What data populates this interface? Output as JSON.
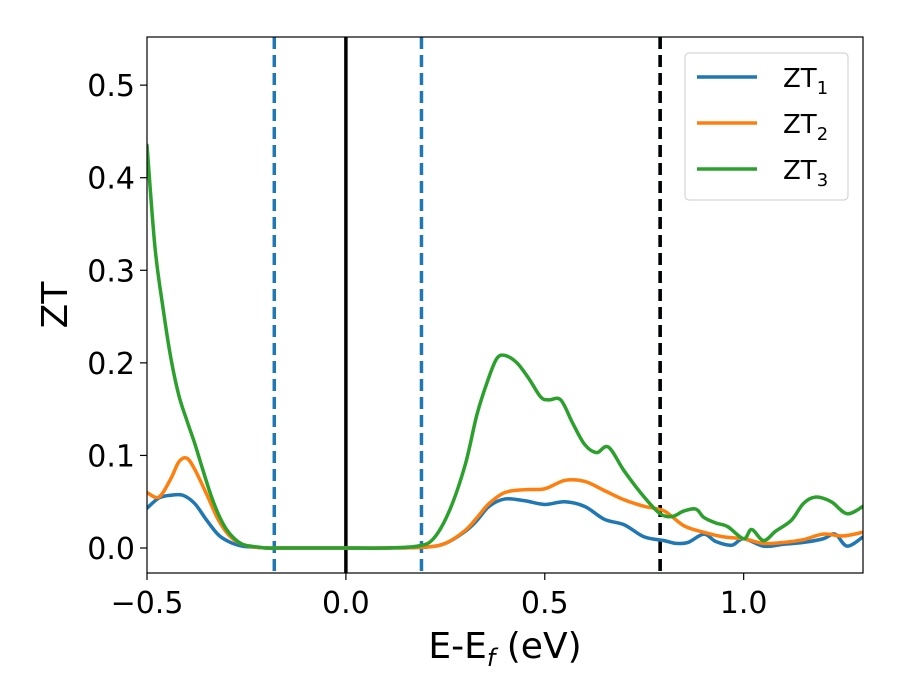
{
  "chart_data": {
    "type": "line",
    "xlabel": "E-E",
    "xlabel_subscript": "f",
    "xlabel_suffix": " (eV)",
    "ylabel": "ZT",
    "xlim": [
      -0.5,
      1.3
    ],
    "ylim": [
      -0.027,
      0.552
    ],
    "x_ticks": [
      -0.5,
      0.0,
      0.5,
      1.0
    ],
    "x_tick_labels": [
      "−0.5",
      "0.0",
      "0.5",
      "1.0"
    ],
    "y_ticks": [
      0.0,
      0.1,
      0.2,
      0.3,
      0.4,
      0.5
    ],
    "y_tick_labels": [
      "0.0",
      "0.1",
      "0.2",
      "0.3",
      "0.4",
      "0.5"
    ],
    "grid": false,
    "legend_position": "top-right",
    "vertical_lines": [
      {
        "x": 0.0,
        "style": "solid",
        "color": "#000000"
      },
      {
        "x": -0.18,
        "style": "dashed",
        "color": "#1f77b4"
      },
      {
        "x": 0.19,
        "style": "dashed",
        "color": "#1f77b4"
      },
      {
        "x": 0.79,
        "style": "dashed",
        "color": "#1f77b4"
      },
      {
        "x": 0.79,
        "style": "dashed",
        "color": "#000000"
      }
    ],
    "series": [
      {
        "name": "ZT",
        "name_subscript": "1",
        "color": "#1f77b4",
        "x": [
          -0.5,
          -0.47,
          -0.44,
          -0.41,
          -0.38,
          -0.35,
          -0.32,
          -0.29,
          -0.26,
          -0.23,
          -0.2,
          -0.15,
          -0.1,
          0.0,
          0.1,
          0.2,
          0.25,
          0.3,
          0.33,
          0.36,
          0.4,
          0.45,
          0.5,
          0.55,
          0.6,
          0.65,
          0.7,
          0.75,
          0.8,
          0.83,
          0.86,
          0.9,
          0.93,
          0.97,
          1.0,
          1.05,
          1.1,
          1.15,
          1.2,
          1.23,
          1.26,
          1.3
        ],
        "y": [
          0.043,
          0.054,
          0.057,
          0.057,
          0.048,
          0.03,
          0.014,
          0.006,
          0.002,
          0.001,
          0.0,
          0.0,
          0.0,
          0.0,
          0.0,
          0.001,
          0.005,
          0.018,
          0.03,
          0.045,
          0.053,
          0.051,
          0.047,
          0.05,
          0.045,
          0.031,
          0.025,
          0.012,
          0.008,
          0.005,
          0.006,
          0.015,
          0.007,
          0.003,
          0.01,
          0.002,
          0.004,
          0.006,
          0.01,
          0.015,
          0.002,
          0.012
        ]
      },
      {
        "name": "ZT",
        "name_subscript": "2",
        "color": "#ff7f0e",
        "x": [
          -0.5,
          -0.47,
          -0.44,
          -0.42,
          -0.4,
          -0.38,
          -0.35,
          -0.32,
          -0.29,
          -0.26,
          -0.23,
          -0.2,
          -0.15,
          -0.1,
          0.0,
          0.1,
          0.2,
          0.25,
          0.3,
          0.33,
          0.36,
          0.4,
          0.45,
          0.5,
          0.55,
          0.6,
          0.65,
          0.7,
          0.75,
          0.8,
          0.85,
          0.9,
          0.95,
          1.0,
          1.05,
          1.1,
          1.15,
          1.2,
          1.25,
          1.3
        ],
        "y": [
          0.06,
          0.055,
          0.075,
          0.093,
          0.097,
          0.085,
          0.058,
          0.03,
          0.012,
          0.004,
          0.001,
          0.0,
          0.0,
          0.0,
          0.0,
          0.0,
          0.001,
          0.005,
          0.019,
          0.033,
          0.048,
          0.06,
          0.063,
          0.064,
          0.073,
          0.072,
          0.062,
          0.052,
          0.045,
          0.04,
          0.024,
          0.017,
          0.012,
          0.01,
          0.005,
          0.006,
          0.009,
          0.015,
          0.013,
          0.017
        ]
      },
      {
        "name": "ZT",
        "name_subscript": "3",
        "color": "#2ca02c",
        "x": [
          -0.5,
          -0.48,
          -0.46,
          -0.44,
          -0.42,
          -0.4,
          -0.38,
          -0.36,
          -0.34,
          -0.32,
          -0.3,
          -0.28,
          -0.26,
          -0.24,
          -0.22,
          -0.2,
          -0.15,
          -0.1,
          0.0,
          0.1,
          0.18,
          0.22,
          0.26,
          0.3,
          0.33,
          0.36,
          0.38,
          0.4,
          0.43,
          0.46,
          0.49,
          0.51,
          0.54,
          0.57,
          0.6,
          0.63,
          0.66,
          0.7,
          0.75,
          0.79,
          0.82,
          0.85,
          0.88,
          0.9,
          0.93,
          0.96,
          1.0,
          1.02,
          1.05,
          1.08,
          1.12,
          1.15,
          1.18,
          1.22,
          1.26,
          1.3
        ],
        "y": [
          0.435,
          0.325,
          0.26,
          0.205,
          0.165,
          0.138,
          0.113,
          0.085,
          0.058,
          0.036,
          0.02,
          0.01,
          0.004,
          0.002,
          0.001,
          0.0,
          0.0,
          0.0,
          0.0,
          0.0,
          0.002,
          0.01,
          0.04,
          0.09,
          0.145,
          0.185,
          0.205,
          0.208,
          0.2,
          0.183,
          0.163,
          0.16,
          0.16,
          0.135,
          0.112,
          0.103,
          0.109,
          0.083,
          0.055,
          0.037,
          0.034,
          0.04,
          0.042,
          0.033,
          0.027,
          0.023,
          0.01,
          0.02,
          0.008,
          0.018,
          0.03,
          0.048,
          0.055,
          0.05,
          0.037,
          0.045
        ]
      }
    ]
  }
}
